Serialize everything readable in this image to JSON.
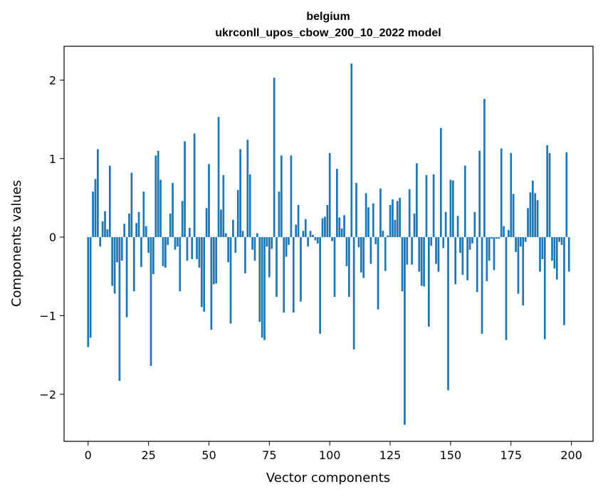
{
  "chart_data": {
    "type": "bar",
    "title_line1": "belgium",
    "title_line2": "ukrconll_upos_cbow_200_10_2022 model",
    "xlabel": "Vector components",
    "ylabel": "Components values",
    "xlim": [
      -9.95,
      208.95
    ],
    "ylim": [
      -2.6,
      2.43
    ],
    "x_ticks": [
      0,
      25,
      50,
      75,
      100,
      125,
      150,
      175,
      200
    ],
    "y_ticks": [
      -2,
      -1,
      0,
      1,
      2
    ],
    "x_tick_labels": [
      "0",
      "25",
      "50",
      "75",
      "100",
      "125",
      "150",
      "175",
      "200"
    ],
    "y_tick_labels": [
      "−2",
      "−1",
      "0",
      "1",
      "2"
    ],
    "grid": false,
    "bar_color": "#1f77b4",
    "x": [
      0,
      1,
      2,
      3,
      4,
      5,
      6,
      7,
      8,
      9,
      10,
      11,
      12,
      13,
      14,
      15,
      16,
      17,
      18,
      19,
      20,
      21,
      22,
      23,
      24,
      25,
      26,
      27,
      28,
      29,
      30,
      31,
      32,
      33,
      34,
      35,
      36,
      37,
      38,
      39,
      40,
      41,
      42,
      43,
      44,
      45,
      46,
      47,
      48,
      49,
      50,
      51,
      52,
      53,
      54,
      55,
      56,
      57,
      58,
      59,
      60,
      61,
      62,
      63,
      64,
      65,
      66,
      67,
      68,
      69,
      70,
      71,
      72,
      73,
      74,
      75,
      76,
      77,
      78,
      79,
      80,
      81,
      82,
      83,
      84,
      85,
      86,
      87,
      88,
      89,
      90,
      91,
      92,
      93,
      94,
      95,
      96,
      97,
      98,
      99,
      100,
      101,
      102,
      103,
      104,
      105,
      106,
      107,
      108,
      109,
      110,
      111,
      112,
      113,
      114,
      115,
      116,
      117,
      118,
      119,
      120,
      121,
      122,
      123,
      124,
      125,
      126,
      127,
      128,
      129,
      130,
      131,
      132,
      133,
      134,
      135,
      136,
      137,
      138,
      139,
      140,
      141,
      142,
      143,
      144,
      145,
      146,
      147,
      148,
      149,
      150,
      151,
      152,
      153,
      154,
      155,
      156,
      157,
      158,
      159,
      160,
      161,
      162,
      163,
      164,
      165,
      166,
      167,
      168,
      169,
      170,
      171,
      172,
      173,
      174,
      175,
      176,
      177,
      178,
      179,
      180,
      181,
      182,
      183,
      184,
      185,
      186,
      187,
      188,
      189,
      190,
      191,
      192,
      193,
      194,
      195,
      196,
      197,
      198,
      199
    ],
    "values": [
      -1.4,
      -1.28,
      0.58,
      0.74,
      1.12,
      -0.12,
      0.2,
      0.33,
      0.1,
      0.91,
      -0.62,
      -0.72,
      -0.32,
      -1.83,
      -0.3,
      0.17,
      -1.02,
      0.3,
      0.82,
      -0.69,
      0.18,
      0.32,
      -0.38,
      0.58,
      0.14,
      -0.2,
      -1.64,
      -0.47,
      1.04,
      1.1,
      0.73,
      -0.37,
      -0.39,
      -0.1,
      0.3,
      0.69,
      -0.16,
      -0.12,
      -0.69,
      0.46,
      1.22,
      -0.3,
      0.12,
      -0.28,
      1.32,
      -0.28,
      -0.39,
      -0.89,
      -0.95,
      0.37,
      0.93,
      -1.18,
      -0.6,
      -0.59,
      1.53,
      0.35,
      0.79,
      0.05,
      -0.32,
      -1.1,
      0.22,
      -0.2,
      0.6,
      1.12,
      0.08,
      -0.46,
      1.24,
      0.8,
      -0.16,
      -0.3,
      0.05,
      -1.08,
      -1.28,
      -1.31,
      -0.12,
      -0.51,
      -0.15,
      2.03,
      -0.76,
      0.58,
      1.04,
      -0.96,
      -0.25,
      -0.1,
      1.04,
      -0.96,
      0.16,
      0.41,
      -0.82,
      0.08,
      0.23,
      -0.12,
      0.08,
      0.03,
      -0.04,
      -0.08,
      -1.23,
      0.24,
      0.26,
      0.41,
      1.07,
      -0.05,
      -0.76,
      0.87,
      0.25,
      0.11,
      0.28,
      -0.37,
      -0.76,
      2.21,
      -1.43,
      0.69,
      -0.13,
      -0.45,
      -0.52,
      0.56,
      0.38,
      -0.34,
      0.43,
      -0.09,
      -0.92,
      0.62,
      0.08,
      -0.43,
      0.02,
      0.41,
      0.48,
      0.22,
      0.46,
      0.5,
      -0.69,
      -2.39,
      -0.35,
      0.61,
      -0.35,
      0.3,
      0.94,
      -0.44,
      -0.62,
      -0.63,
      0.79,
      -1.14,
      -0.11,
      0.8,
      -0.34,
      -0.44,
      1.39,
      -0.14,
      0.32,
      -1.95,
      0.73,
      0.72,
      -0.6,
      0.27,
      -0.2,
      -0.48,
      0.91,
      -0.55,
      -0.16,
      -0.08,
      0.32,
      -0.7,
      1.1,
      -1.23,
      1.76,
      -0.56,
      -0.3,
      -0.02,
      -0.42,
      -0.02,
      -0.02,
      1.13,
      0.14,
      -1.31,
      0.09,
      1.07,
      0.55,
      -0.19,
      -0.72,
      -0.12,
      -0.87,
      -0.06,
      0.37,
      0.57,
      0.72,
      0.56,
      0.47,
      -0.44,
      -0.28,
      -1.3,
      1.17,
      1.07,
      -0.3,
      -0.4,
      -0.54,
      -0.06,
      -0.1,
      -1.12,
      1.08,
      -0.44
    ]
  }
}
